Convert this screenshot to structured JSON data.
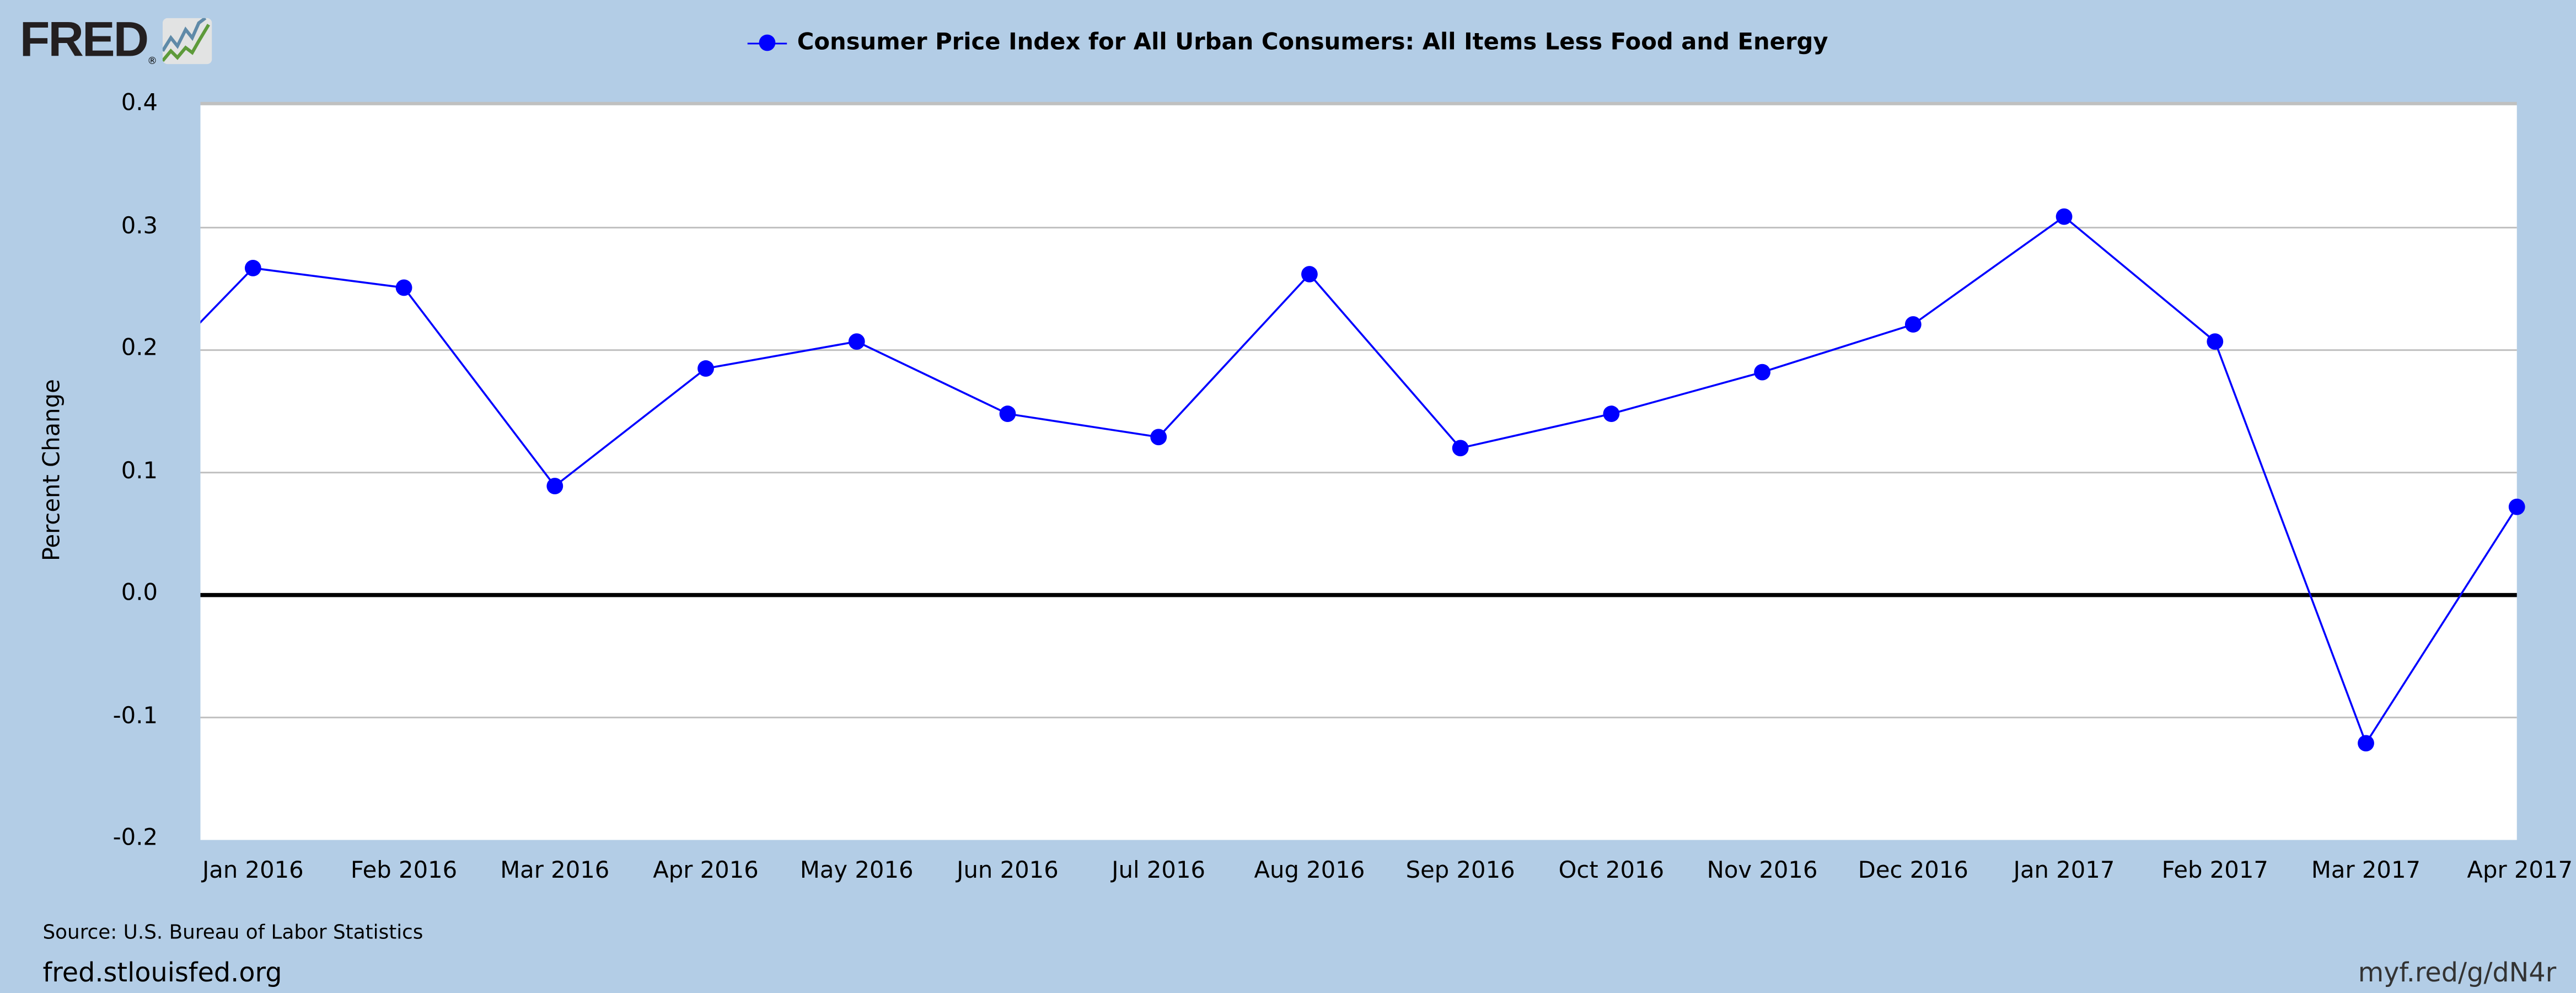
{
  "brand": {
    "logo_text": "FRED",
    "registered": "®"
  },
  "chart_data": {
    "type": "line",
    "title": "Consumer Price Index for All Urban Consumers: All Items Less Food and Energy",
    "legend": [
      "Consumer Price Index for All Urban Consumers: All Items Less Food and Energy"
    ],
    "legend_placement": "top-center",
    "xlabel": "",
    "ylabel": "Percent Change",
    "ylim": [
      -0.2,
      0.4
    ],
    "yticks": [
      "0.4",
      "0.3",
      "0.2",
      "0.1",
      "0.0",
      "-0.1",
      "-0.2"
    ],
    "ytick_values": [
      0.4,
      0.3,
      0.2,
      0.1,
      0.0,
      -0.1,
      -0.2
    ],
    "grid": true,
    "zero_line": true,
    "series_color": "#0000ff",
    "categories": [
      "Jan 2016",
      "Feb 2016",
      "Mar 2016",
      "Apr 2016",
      "May 2016",
      "Jun 2016",
      "Jul 2016",
      "Aug 2016",
      "Sep 2016",
      "Oct 2016",
      "Nov 2016",
      "Dec 2016",
      "Jan 2017",
      "Feb 2017",
      "Mar 2017",
      "Apr 2017"
    ],
    "series": [
      {
        "name": "Consumer Price Index for All Urban Consumers: All Items Less Food and Energy",
        "values": [
          0.267,
          0.251,
          0.089,
          0.185,
          0.207,
          0.148,
          0.129,
          0.262,
          0.12,
          0.148,
          0.182,
          0.221,
          0.309,
          0.207,
          -0.121,
          0.072
        ],
        "prior_clipped_value": 0.14
      }
    ]
  },
  "footer": {
    "source": "Source: U.S. Bureau of Labor Statistics",
    "site": "fred.stlouisfed.org",
    "shortlink": "myf.red/g/dN4r"
  }
}
